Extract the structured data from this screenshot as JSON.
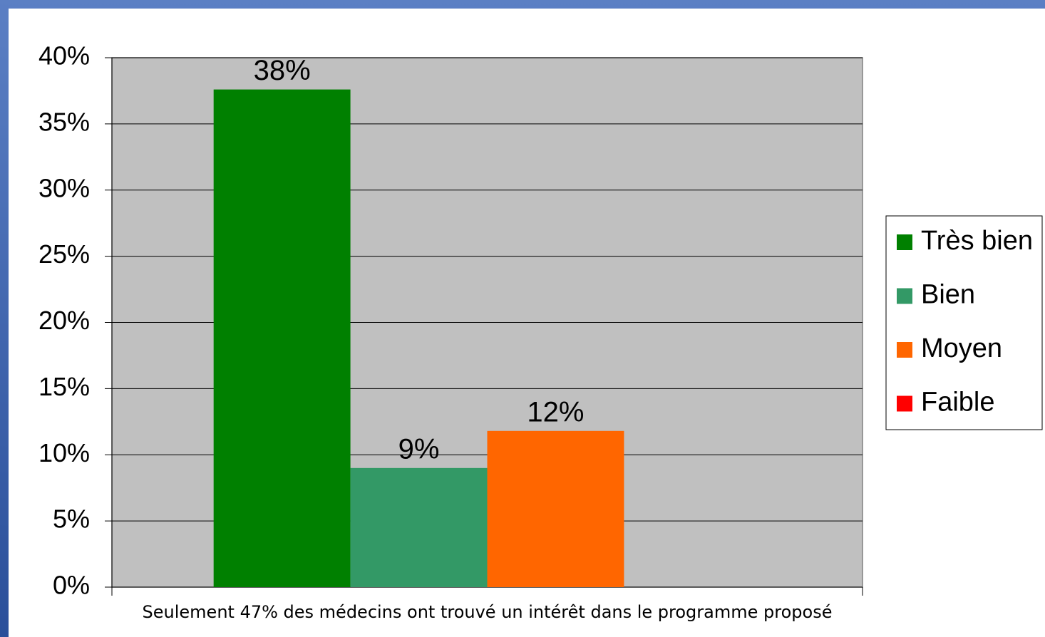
{
  "chart_data": {
    "type": "bar",
    "categories": [
      "Seulement 47% des médecins ont trouvé un intérêt dans le programme proposé"
    ],
    "series": [
      {
        "name": "Très bien",
        "color": "#008000",
        "values": [
          37.6
        ],
        "value_labels": [
          "38%"
        ]
      },
      {
        "name": "Bien",
        "color": "#339966",
        "values": [
          9
        ],
        "value_labels": [
          "9%"
        ]
      },
      {
        "name": "Moyen",
        "color": "#ff6600",
        "values": [
          11.8
        ],
        "value_labels": [
          "12%"
        ]
      },
      {
        "name": "Faible",
        "color": "#ff0000",
        "values": [
          0
        ]
      }
    ],
    "ylim": [
      0,
      40
    ],
    "yticks": [
      {
        "value": 0,
        "label": "0%"
      },
      {
        "value": 5,
        "label": "5%"
      },
      {
        "value": 10,
        "label": "10%"
      },
      {
        "value": 15,
        "label": "15%"
      },
      {
        "value": 20,
        "label": "20%"
      },
      {
        "value": 25,
        "label": "25%"
      },
      {
        "value": 30,
        "label": "30%"
      },
      {
        "value": 35,
        "label": "35%"
      },
      {
        "value": 40,
        "label": "40%"
      }
    ],
    "grid": true,
    "legend": "right",
    "plot_background": "#c0c0c0"
  }
}
